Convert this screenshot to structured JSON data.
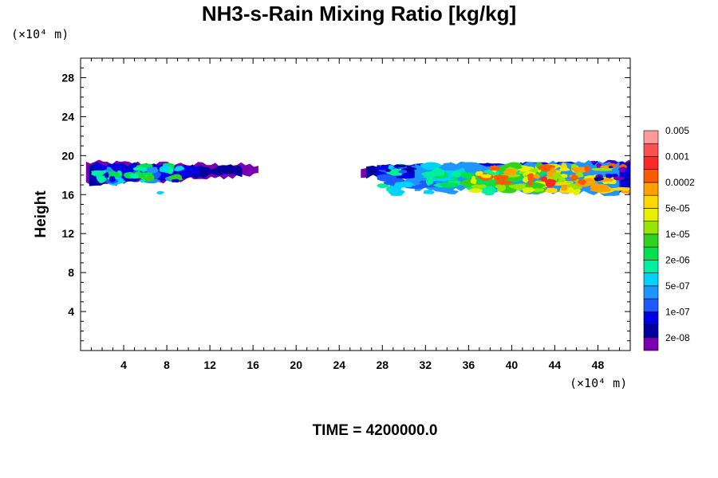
{
  "title": "NH3-s-Rain Mixing Ratio [kg/kg]",
  "time_label": "TIME = 4200000.0",
  "chart_data": {
    "type": "heatmap",
    "xlabel": "",
    "ylabel": "Height",
    "x_unit": "(×10⁴ m)",
    "y_unit": "(×10⁴ m)",
    "xlim": [
      0,
      51
    ],
    "ylim": [
      0,
      30
    ],
    "x_ticks": [
      4,
      8,
      12,
      16,
      20,
      24,
      28,
      32,
      36,
      40,
      44,
      48
    ],
    "y_ticks": [
      4,
      8,
      12,
      16,
      20,
      24,
      28
    ],
    "colorbar": {
      "colors": [
        "#7b00b0",
        "#0000a0",
        "#0000e6",
        "#1e5aff",
        "#1e96ff",
        "#00d2ff",
        "#00eea0",
        "#00e050",
        "#30d21e",
        "#96e600",
        "#e6f000",
        "#ffd700",
        "#ffa000",
        "#ff5a00",
        "#ff2828",
        "#ff5050",
        "#ff9a9a"
      ],
      "labels": [
        "2e-08",
        "1e-07",
        "5e-07",
        "2e-06",
        "1e-05",
        "5e-05",
        "0.0002",
        "0.001",
        "0.005"
      ]
    },
    "regions": [
      {
        "x": [
          0.5,
          16.5
        ],
        "y": [
          16.3,
          19.5
        ],
        "peak_level": 8
      },
      {
        "x": [
          26,
          51
        ],
        "y": [
          15.8,
          19.6
        ],
        "peak_level": 14
      }
    ]
  }
}
